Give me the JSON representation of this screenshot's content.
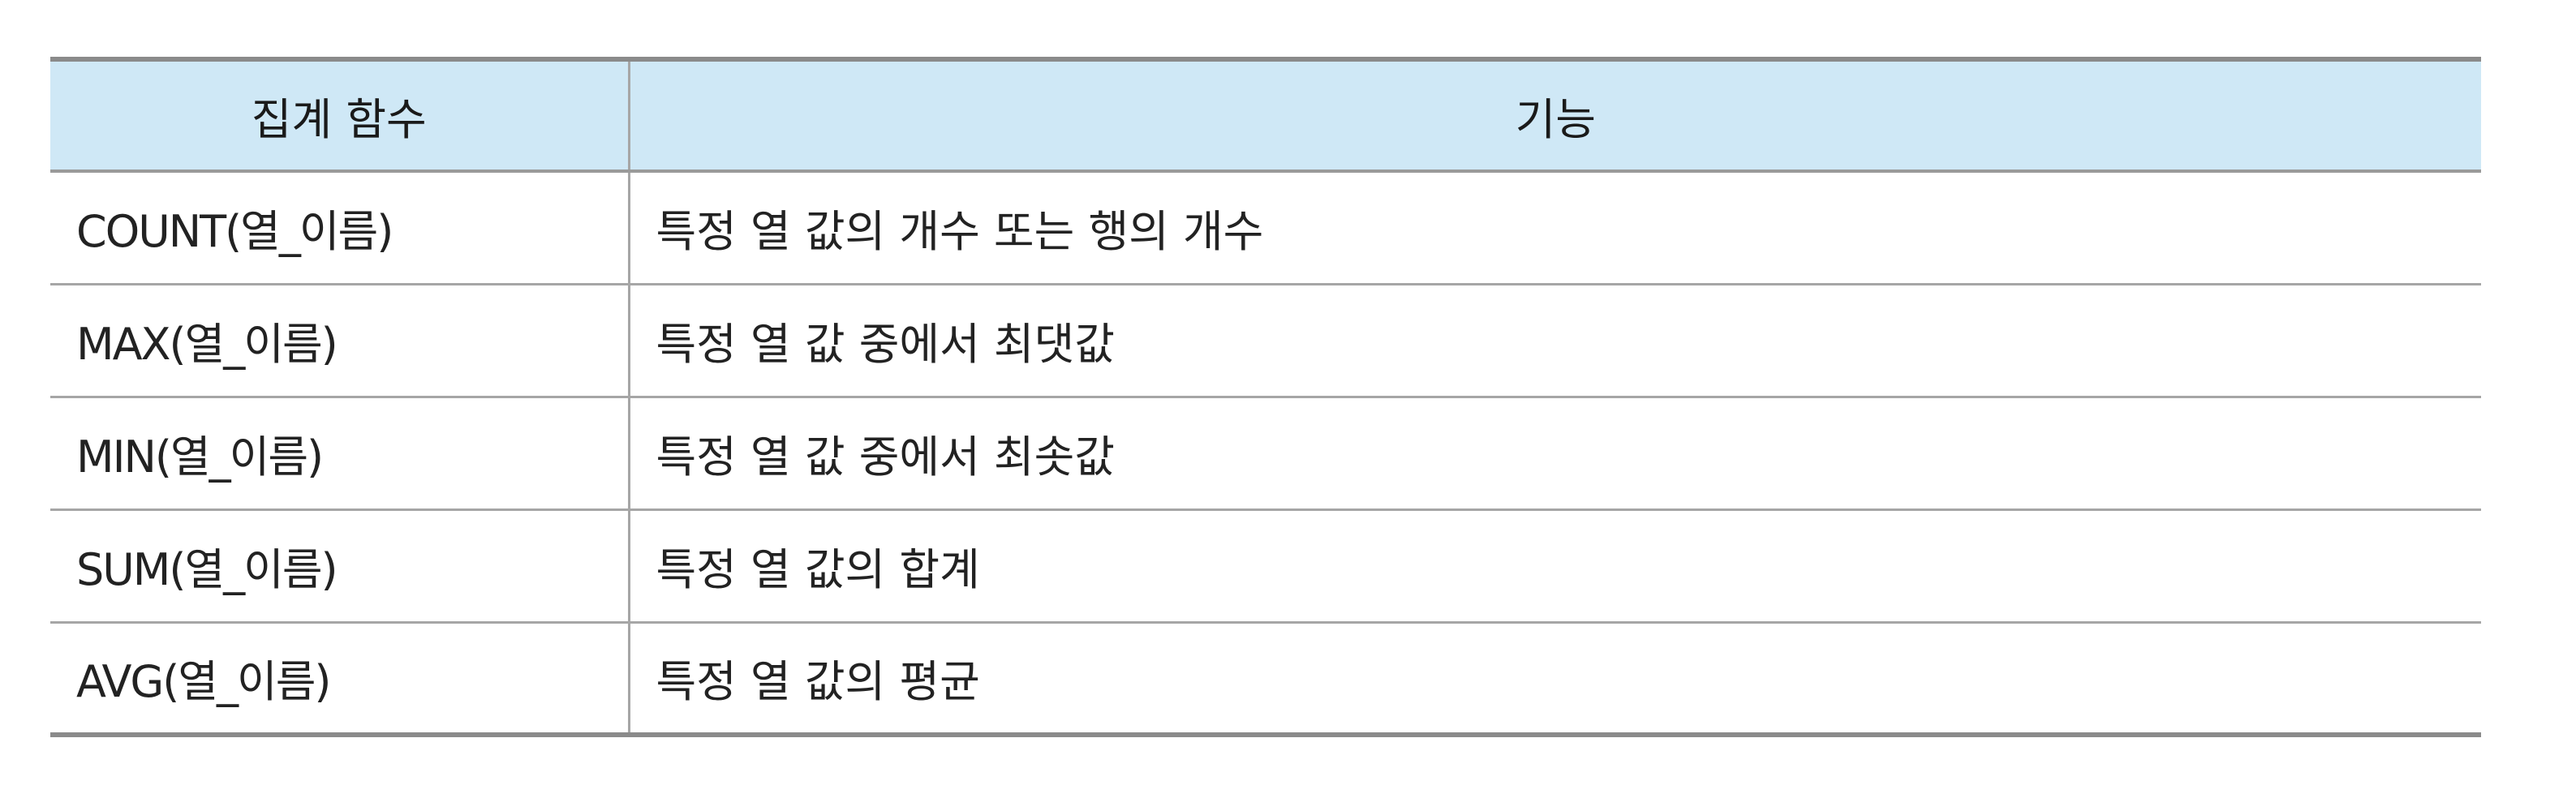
{
  "table": {
    "headers": {
      "function": "집계 함수",
      "description": "기능"
    },
    "rows": [
      {
        "function": "COUNT(열_이름)",
        "description": "특정 열 값의 개수 또는 행의 개수"
      },
      {
        "function": "MAX(열_이름)",
        "description": "특정 열 값 중에서 최댓값"
      },
      {
        "function": "MIN(열_이름)",
        "description": "특정 열 값 중에서 최솟값"
      },
      {
        "function": "SUM(열_이름)",
        "description": "특정 열 값의 합계"
      },
      {
        "function": "AVG(열_이름)",
        "description": "특정 열 값의 평균"
      }
    ]
  },
  "colors": {
    "header_background": "#cfe8f6",
    "border": "#a6a6a6",
    "text": "#222222"
  }
}
